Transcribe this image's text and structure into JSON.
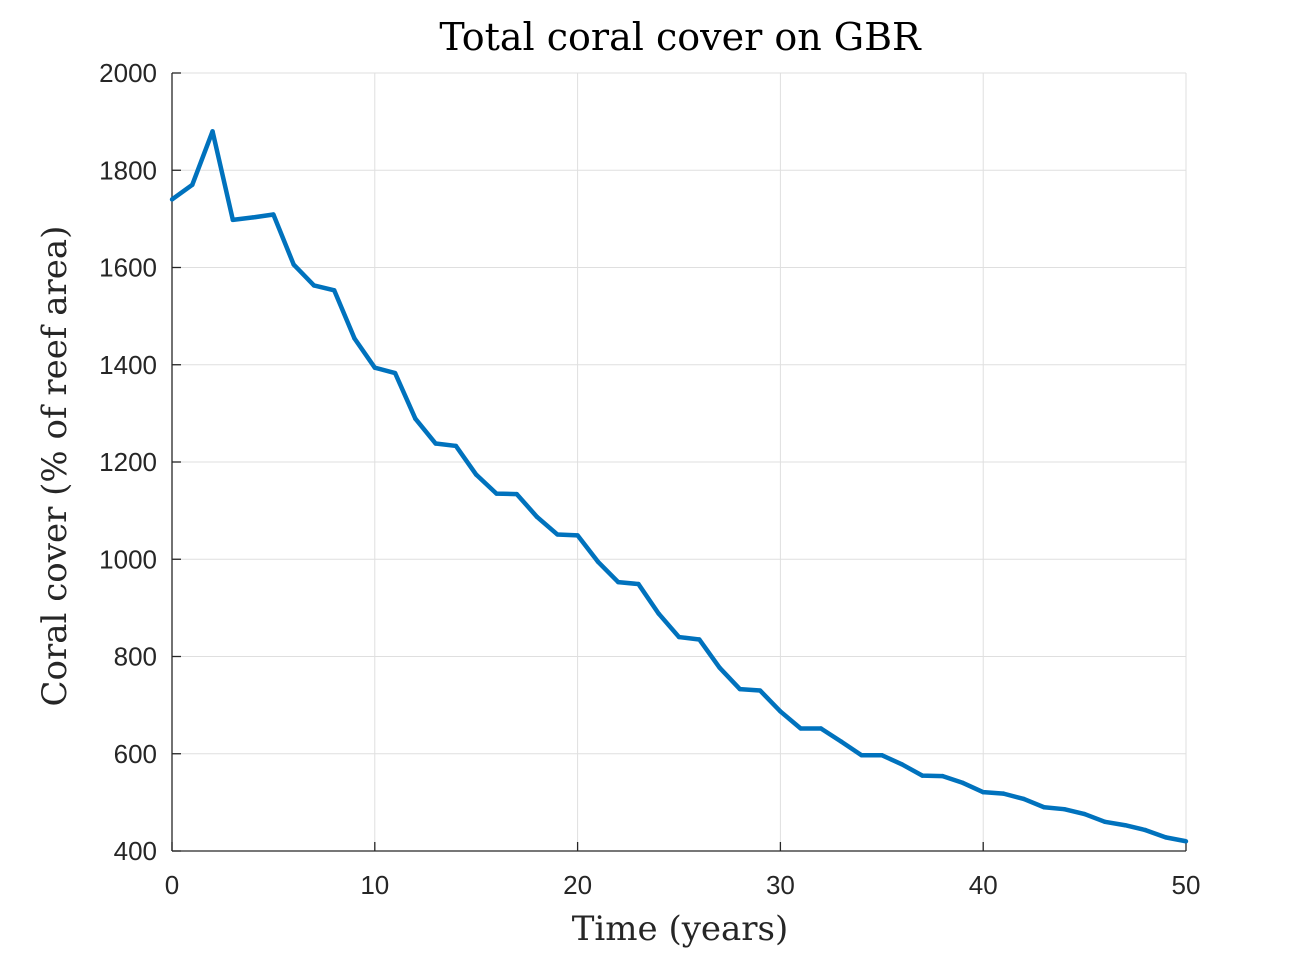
{
  "chart_data": {
    "type": "line",
    "title": "Total coral cover on GBR",
    "xlabel": "Time (years)",
    "ylabel": "Coral cover (% of reef area)",
    "xlim": [
      0,
      50
    ],
    "ylim": [
      400,
      2000
    ],
    "xticks": [
      0,
      10,
      20,
      30,
      40,
      50
    ],
    "yticks": [
      400,
      600,
      800,
      1000,
      1200,
      1400,
      1600,
      1800,
      2000
    ],
    "grid": true,
    "legend": "none",
    "series": [
      {
        "color": "#0072bd",
        "x": [
          0,
          1,
          2,
          3,
          4,
          5,
          6,
          7,
          8,
          9,
          10,
          11,
          12,
          13,
          14,
          15,
          16,
          17,
          18,
          19,
          20,
          21,
          22,
          23,
          24,
          25,
          26,
          27,
          28,
          29,
          30,
          31,
          32,
          33,
          34,
          35,
          36,
          37,
          38,
          39,
          40,
          41,
          42,
          43,
          44,
          45,
          46,
          47,
          48,
          49,
          50
        ],
        "y": [
          1740,
          1770,
          1880,
          1698,
          1703,
          1709,
          1606,
          1563,
          1553,
          1454,
          1394,
          1383,
          1289,
          1238,
          1233,
          1174,
          1135,
          1134,
          1087,
          1051,
          1049,
          995,
          953,
          949,
          888,
          840,
          835,
          777,
          733,
          730,
          687,
          652,
          652,
          625,
          597,
          597,
          578,
          555,
          554,
          540,
          521,
          518,
          507,
          490,
          486,
          476,
          460,
          453,
          443,
          428,
          420
        ]
      }
    ]
  }
}
